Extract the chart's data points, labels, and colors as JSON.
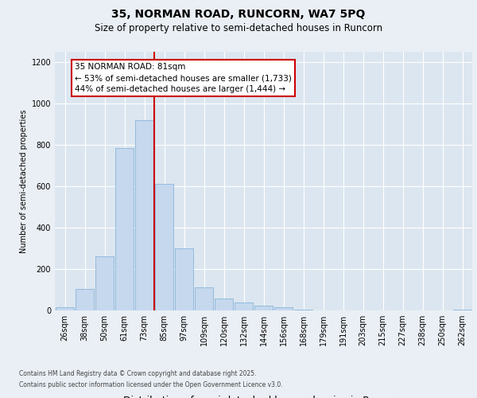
{
  "title_line1": "35, NORMAN ROAD, RUNCORN, WA7 5PQ",
  "title_line2": "Size of property relative to semi-detached houses in Runcorn",
  "xlabel": "Distribution of semi-detached houses by size in Runcorn",
  "ylabel": "Number of semi-detached properties",
  "categories": [
    "26sqm",
    "38sqm",
    "50sqm",
    "61sqm",
    "73sqm",
    "85sqm",
    "97sqm",
    "109sqm",
    "120sqm",
    "132sqm",
    "144sqm",
    "156sqm",
    "168sqm",
    "179sqm",
    "191sqm",
    "203sqm",
    "215sqm",
    "227sqm",
    "238sqm",
    "250sqm",
    "262sqm"
  ],
  "values": [
    15,
    105,
    260,
    785,
    920,
    610,
    300,
    110,
    58,
    38,
    25,
    15,
    5,
    0,
    0,
    0,
    0,
    0,
    0,
    0,
    5
  ],
  "bar_color": "#c5d8ee",
  "bar_edge_color": "#7aadd4",
  "bg_color": "#eaeff5",
  "plot_bg_color": "#dce6f0",
  "grid_color": "#ffffff",
  "vline_color": "#cc0000",
  "vline_pos": 4.5,
  "annotation_title": "35 NORMAN ROAD: 81sqm",
  "annotation_line2": "← 53% of semi-detached houses are smaller (1,733)",
  "annotation_line3": "44% of semi-detached houses are larger (1,444) →",
  "ylim": [
    0,
    1250
  ],
  "yticks": [
    0,
    200,
    400,
    600,
    800,
    1000,
    1200
  ],
  "title1_fontsize": 10,
  "title2_fontsize": 8.5,
  "ylabel_fontsize": 7,
  "xlabel_fontsize": 9,
  "tick_fontsize": 7,
  "ann_fontsize": 7.5,
  "footer_line1": "Contains HM Land Registry data © Crown copyright and database right 2025.",
  "footer_line2": "Contains public sector information licensed under the Open Government Licence v3.0."
}
